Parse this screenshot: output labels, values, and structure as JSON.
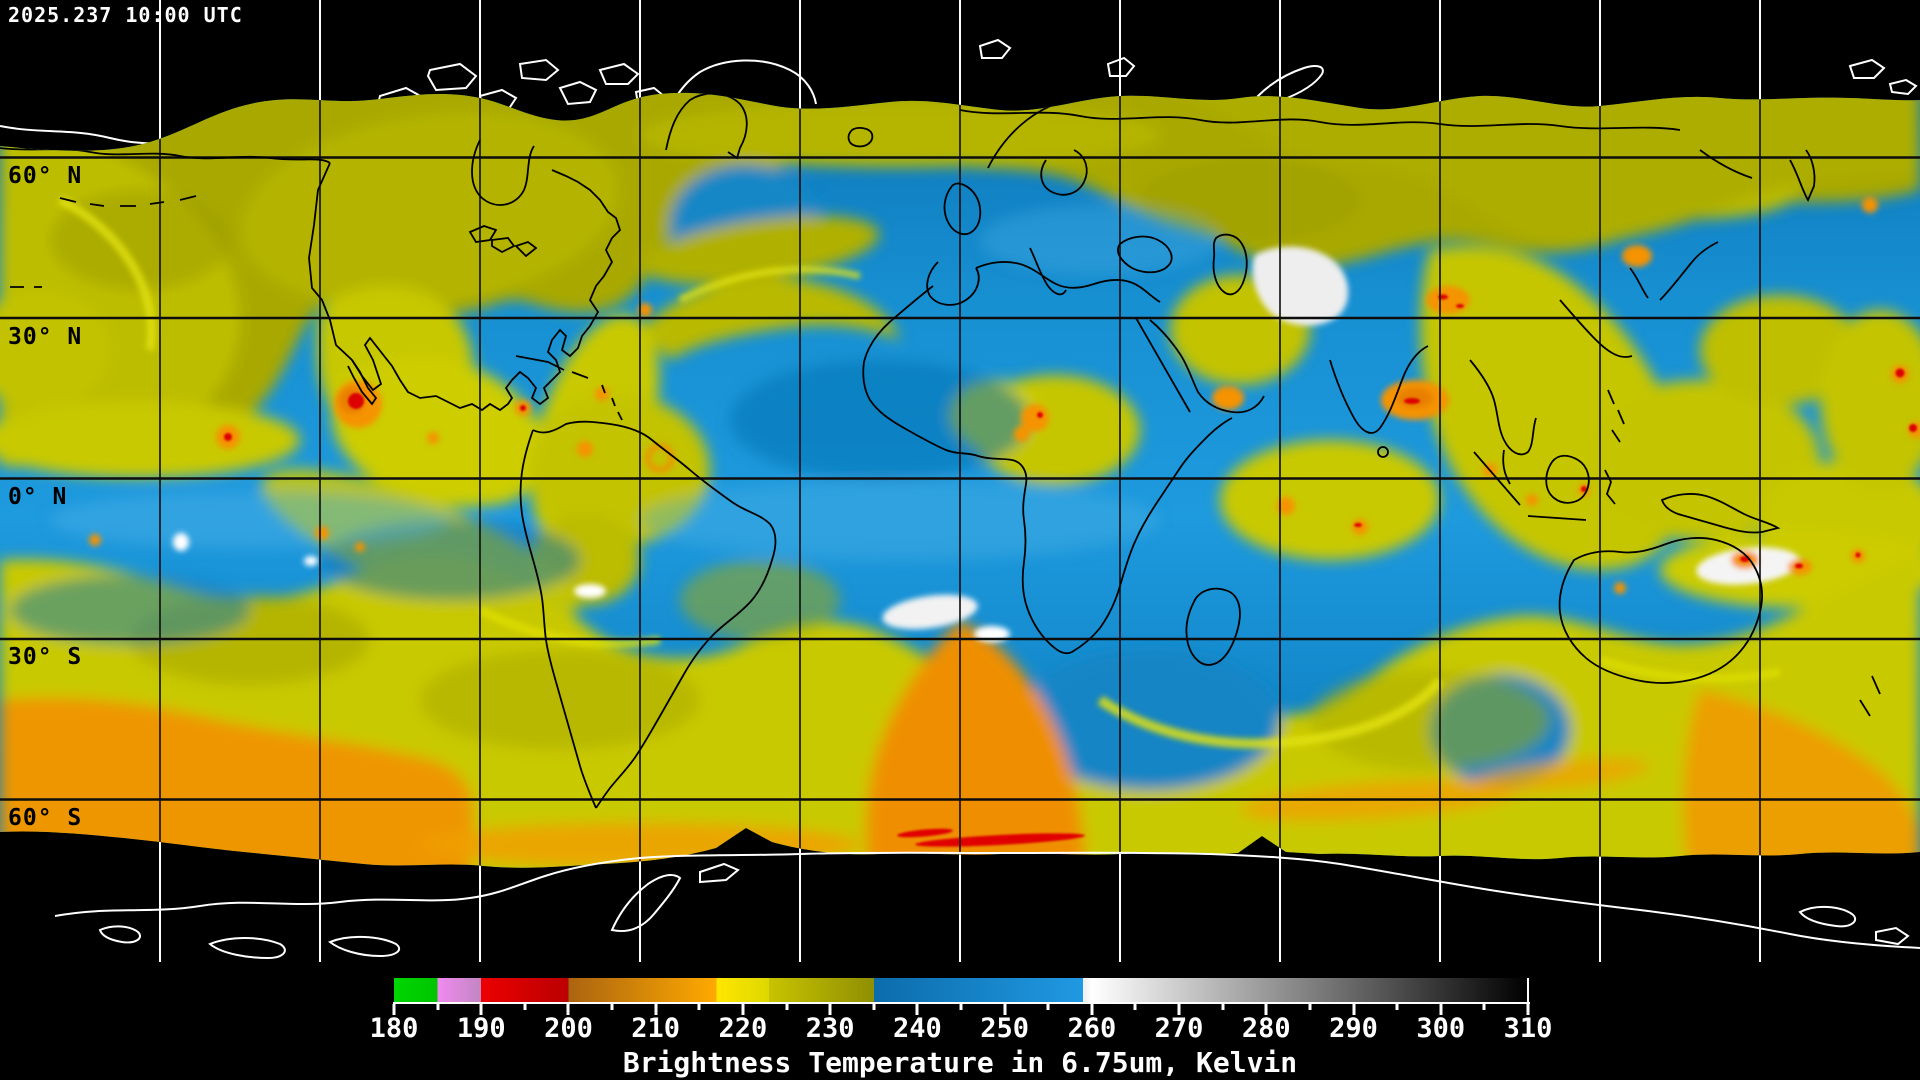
{
  "header": {
    "timestamp": "2025.237 10:00 UTC"
  },
  "map": {
    "description": "Global water vapor satellite composite on lat/lon grid",
    "latitude_labels": [
      {
        "label": "60° N"
      },
      {
        "label": "30° N"
      },
      {
        "label": "0° N"
      },
      {
        "label": "30° S"
      },
      {
        "label": "60° S"
      }
    ],
    "graticule": {
      "lat_interval_deg": 30,
      "lon_interval_deg": 30
    },
    "feature_colors": {
      "no_data_background": "#000000",
      "dry_upper_troposphere": "#1590d2",
      "moist_plume": "#c6c600",
      "warm_band": "#f09800",
      "cold_convection": "#dd0505",
      "very_cold_cloud": "#f2f2f2",
      "coastline_over_data": "#000000",
      "coastline_over_background": "#ffffff"
    }
  },
  "colorbar": {
    "caption": "Brightness Temperature in 6.75um, Kelvin",
    "min": 180,
    "max": 310,
    "major_tick_interval": 10,
    "minor_tick_interval": 5,
    "tick_labels": [
      "180",
      "190",
      "200",
      "210",
      "220",
      "230",
      "240",
      "250",
      "260",
      "270",
      "280",
      "290",
      "300",
      "310"
    ],
    "palette": [
      {
        "from": 180,
        "to": 185,
        "start": "#00d600",
        "end": "#00c400"
      },
      {
        "from": 185,
        "to": 190,
        "start": "#f08af0",
        "end": "#c286c2"
      },
      {
        "from": 190,
        "to": 200,
        "start": "#ec0000",
        "end": "#ba0000"
      },
      {
        "from": 200,
        "to": 217,
        "start": "#aa6410",
        "end": "#ffaa00"
      },
      {
        "from": 217,
        "to": 223,
        "start": "#ffe600",
        "end": "#ded800"
      },
      {
        "from": 223,
        "to": 235,
        "start": "#c8c300",
        "end": "#8f8f03"
      },
      {
        "from": 235,
        "to": 259,
        "start": "#0c6cab",
        "end": "#2099e2"
      },
      {
        "from": 259,
        "to": 260,
        "start": "#eeeeee",
        "end": "#ffffff"
      },
      {
        "from": 260,
        "to": 310,
        "start": "#ffffff",
        "end": "#000000"
      }
    ]
  }
}
